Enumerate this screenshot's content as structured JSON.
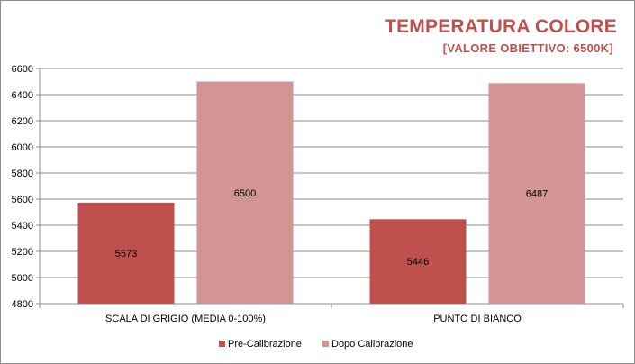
{
  "chart_data": {
    "type": "bar",
    "title": "TEMPERATURA COLORE",
    "subtitle": "[VALORE OBIETTIVO: 6500K]",
    "categories": [
      "SCALA DI GRIGIO  (MEDIA  0-100%)",
      "PUNTO DI BIANCO"
    ],
    "series": [
      {
        "name": "Pre-Calibrazione",
        "values": [
          5573,
          5446
        ],
        "color": "#c0504d"
      },
      {
        "name": "Dopo Calibrazione",
        "values": [
          6500,
          6487
        ],
        "color": "#d39494"
      }
    ],
    "ylim": [
      4800,
      6600
    ],
    "yticks": [
      4800,
      5000,
      5200,
      5400,
      5600,
      5800,
      6000,
      6200,
      6400,
      6600
    ],
    "grid": true,
    "legend_position": "bottom",
    "xlabel": "",
    "ylabel": ""
  }
}
